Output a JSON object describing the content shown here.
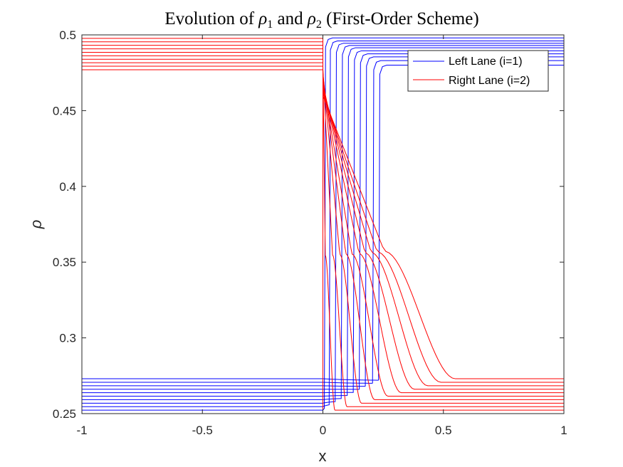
{
  "chart_data": {
    "type": "line",
    "title": {
      "prefix": "Evolution of ",
      "rho1_symbol": "ρ",
      "rho1_sub": "1",
      "middle": " and ",
      "rho2_symbol": "ρ",
      "rho2_sub": "2",
      "suffix": " (First-Order Scheme)"
    },
    "xlabel": "x",
    "ylabel": "ρ",
    "xlim": [
      -1,
      1
    ],
    "ylim": [
      0.25,
      0.5
    ],
    "xticks": [
      -1,
      -0.5,
      0,
      0.5,
      1
    ],
    "xtick_labels": [
      "-1",
      "-0.5",
      "0",
      "0.5",
      "1"
    ],
    "yticks": [
      0.25,
      0.3,
      0.35,
      0.4,
      0.45,
      0.5
    ],
    "ytick_labels": [
      "0.25",
      "0.3",
      "0.35",
      "0.4",
      "0.45",
      "0.5"
    ],
    "grid": false,
    "legend": {
      "placement": "top-right",
      "entries": [
        {
          "label": "Left Lane (i=1)",
          "color": "#0000ff"
        },
        {
          "label": "Right Lane (i=2)",
          "color": "#ff0000"
        }
      ]
    },
    "series": [
      {
        "name": "Left Lane (i=1)",
        "color": "#0000ff",
        "profiles": [
          {
            "left": 0.25,
            "jump": 0.0,
            "right": 0.5,
            "mid": 0.25,
            "fall_end": 0.0
          },
          {
            "left": 0.2523,
            "jump": 0.01,
            "right": 0.498,
            "mid": 0.254,
            "fall_end": 0.015
          },
          {
            "left": 0.2546,
            "jump": 0.03,
            "right": 0.496,
            "mid": 0.256,
            "fall_end": 0.04
          },
          {
            "left": 0.2569,
            "jump": 0.055,
            "right": 0.4945,
            "mid": 0.258,
            "fall_end": 0.07
          },
          {
            "left": 0.2592,
            "jump": 0.08,
            "right": 0.493,
            "mid": 0.26,
            "fall_end": 0.095
          },
          {
            "left": 0.2615,
            "jump": 0.105,
            "right": 0.4915,
            "mid": 0.262,
            "fall_end": 0.125
          },
          {
            "left": 0.2638,
            "jump": 0.13,
            "right": 0.4895,
            "mid": 0.264,
            "fall_end": 0.15
          },
          {
            "left": 0.2661,
            "jump": 0.155,
            "right": 0.4875,
            "mid": 0.266,
            "fall_end": 0.175
          },
          {
            "left": 0.2684,
            "jump": 0.18,
            "right": 0.4855,
            "mid": 0.268,
            "fall_end": 0.2
          },
          {
            "left": 0.2707,
            "jump": 0.21,
            "right": 0.483,
            "mid": 0.27,
            "fall_end": 0.225
          },
          {
            "left": 0.273,
            "jump": 0.235,
            "right": 0.48,
            "mid": 0.272,
            "fall_end": 0.255
          }
        ]
      },
      {
        "name": "Right Lane (i=2)",
        "color": "#ff0000",
        "profiles": [
          {
            "left": 0.5,
            "start": 0.48,
            "end": 0.25,
            "kink": 0.0,
            "tail": 0.0
          },
          {
            "left": 0.4977,
            "start": 0.479,
            "end": 0.2523,
            "kink": 0.01,
            "tail": 0.05
          },
          {
            "left": 0.4954,
            "start": 0.477,
            "end": 0.2546,
            "kink": 0.04,
            "tail": 0.1
          },
          {
            "left": 0.4931,
            "start": 0.475,
            "end": 0.2569,
            "kink": 0.07,
            "tail": 0.16
          },
          {
            "left": 0.4908,
            "start": 0.473,
            "end": 0.2592,
            "kink": 0.095,
            "tail": 0.215
          },
          {
            "left": 0.4885,
            "start": 0.47,
            "end": 0.2615,
            "kink": 0.12,
            "tail": 0.27
          },
          {
            "left": 0.4862,
            "start": 0.468,
            "end": 0.2638,
            "kink": 0.15,
            "tail": 0.325
          },
          {
            "left": 0.4839,
            "start": 0.466,
            "end": 0.2661,
            "kink": 0.175,
            "tail": 0.38
          },
          {
            "left": 0.4816,
            "start": 0.464,
            "end": 0.2684,
            "kink": 0.2,
            "tail": 0.435
          },
          {
            "left": 0.4793,
            "start": 0.462,
            "end": 0.2707,
            "kink": 0.225,
            "tail": 0.49
          },
          {
            "left": 0.477,
            "start": 0.46,
            "end": 0.273,
            "kink": 0.255,
            "tail": 0.55
          }
        ]
      }
    ]
  }
}
